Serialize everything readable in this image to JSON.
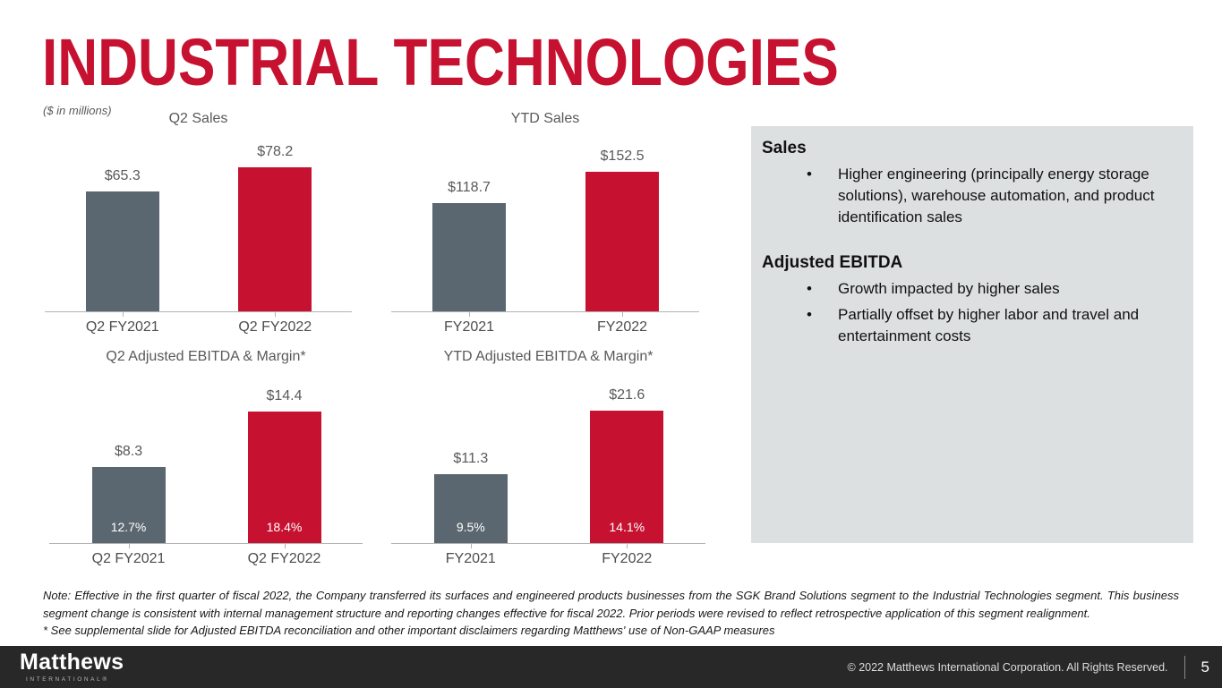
{
  "slide": {
    "title": "INDUSTRIAL TECHNOLOGIES",
    "units_note": "($ in millions)",
    "accent_red": "#c61230",
    "bar_gray": "#5a6770",
    "panel_bg": "#dde0e0"
  },
  "chart_data": [
    {
      "type": "bar",
      "title": "Q2 Sales",
      "categories": [
        "Q2 FY2021",
        "Q2 FY2022"
      ],
      "values": [
        65.3,
        78.2
      ],
      "value_labels": [
        "$65.3",
        "$78.2"
      ],
      "bar_colors": [
        "#5a6770",
        "#c61230"
      ],
      "ylim": [
        0,
        80
      ],
      "grid": false,
      "legend": "none"
    },
    {
      "type": "bar",
      "title": "YTD Sales",
      "categories": [
        "FY2021",
        "FY2022"
      ],
      "values": [
        118.7,
        152.5
      ],
      "value_labels": [
        "$118.7",
        "$152.5"
      ],
      "bar_colors": [
        "#5a6770",
        "#c61230"
      ],
      "ylim": [
        0,
        160
      ],
      "grid": false,
      "legend": "none"
    },
    {
      "type": "bar",
      "title": "Q2 Adjusted EBITDA & Margin*",
      "categories": [
        "Q2 FY2021",
        "Q2 FY2022"
      ],
      "values": [
        8.3,
        14.4
      ],
      "value_labels": [
        "$8.3",
        "$14.4"
      ],
      "margin_labels": [
        "12.7%",
        "18.4%"
      ],
      "bar_colors": [
        "#5a6770",
        "#c61230"
      ],
      "ylim": [
        0,
        15
      ],
      "grid": false,
      "legend": "none"
    },
    {
      "type": "bar",
      "title": "YTD Adjusted EBITDA & Margin*",
      "categories": [
        "FY2021",
        "FY2022"
      ],
      "values": [
        11.3,
        21.6
      ],
      "value_labels": [
        "$11.3",
        "$21.6"
      ],
      "margin_labels": [
        "9.5%",
        "14.1%"
      ],
      "bar_colors": [
        "#5a6770",
        "#c61230"
      ],
      "ylim": [
        0,
        22
      ],
      "grid": false,
      "legend": "none"
    }
  ],
  "commentary": {
    "sections": [
      {
        "heading": "Sales",
        "bullets": [
          "Higher engineering (principally energy storage solutions), warehouse automation, and product identification sales"
        ]
      },
      {
        "heading": "Adjusted EBITDA",
        "bullets": [
          "Growth impacted by higher sales",
          "Partially offset by higher labor and travel and entertainment costs"
        ]
      }
    ]
  },
  "footnotes": {
    "note": "Note:  Effective in the first quarter of fiscal 2022, the Company transferred its surfaces and engineered products businesses from the SGK Brand Solutions segment to the Industrial Technologies segment.  This business segment change is consistent with internal management structure and reporting changes effective for fiscal 2022.  Prior periods were revised to reflect retrospective application of this segment realignment.",
    "asterisk": "* See supplemental slide for Adjusted EBITDA reconciliation and other important disclaimers regarding Matthews' use of Non-GAAP measures"
  },
  "footer": {
    "logo_primary": "Matthews",
    "logo_secondary": "INTERNATIONAL®",
    "copyright": "© 2022 Matthews International Corporation. All Rights Reserved.",
    "page_number": "5"
  }
}
